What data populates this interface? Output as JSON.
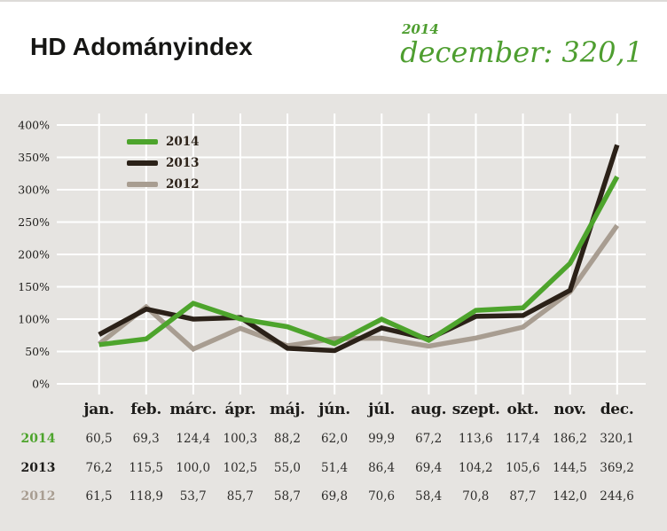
{
  "header": {
    "title": "HD Adományindex",
    "highlight_year": "2014",
    "highlight_text": "december: 320,1"
  },
  "chart_data": {
    "type": "line",
    "title": "HD Adományindex",
    "categories": [
      "jan.",
      "feb.",
      "márc.",
      "ápr.",
      "máj.",
      "jún.",
      "júl.",
      "aug.",
      "szept.",
      "okt.",
      "nov.",
      "dec."
    ],
    "series": [
      {
        "name": "2014",
        "color": "#4da42c",
        "values": [
          60.5,
          69.3,
          124.4,
          100.3,
          88.2,
          62.0,
          99.9,
          67.2,
          113.6,
          117.4,
          186.2,
          320.1
        ]
      },
      {
        "name": "2013",
        "color": "#2b2118",
        "values": [
          76.2,
          115.5,
          100.0,
          102.5,
          55.0,
          51.4,
          86.4,
          69.4,
          104.2,
          105.6,
          144.5,
          369.2
        ]
      },
      {
        "name": "2012",
        "color": "#a89d91",
        "values": [
          61.5,
          118.9,
          53.7,
          85.7,
          58.7,
          69.8,
          70.6,
          58.4,
          70.8,
          87.7,
          142.0,
          244.6
        ]
      }
    ],
    "yticks": [
      "0%",
      "50%",
      "100%",
      "150%",
      "200%",
      "250%",
      "300%",
      "350%",
      "400%"
    ],
    "ylim": [
      0,
      400
    ],
    "grid": true,
    "legend_position": "top-left"
  },
  "table": {
    "rows": [
      {
        "label": "2014",
        "color": "#4da42c",
        "values": [
          "60,5",
          "69,3",
          "124,4",
          "100,3",
          "88,2",
          "62,0",
          "99,9",
          "67,2",
          "113,6",
          "117,4",
          "186,2",
          "320,1"
        ]
      },
      {
        "label": "2013",
        "color": "#1d1c1a",
        "values": [
          "76,2",
          "115,5",
          "100,0",
          "102,5",
          "55,0",
          "51,4",
          "86,4",
          "69,4",
          "104,2",
          "105,6",
          "144,5",
          "369,2"
        ]
      },
      {
        "label": "2012",
        "color": "#a89d91",
        "values": [
          "61,5",
          "118,9",
          "53,7",
          "85,7",
          "58,7",
          "69,8",
          "70,6",
          "58,4",
          "70,8",
          "87,7",
          "142,0",
          "244,6"
        ]
      }
    ]
  },
  "colors": {
    "background": "#e6e4e1",
    "header_background": "#ffffff",
    "grid": "#ffffff",
    "text": "#1d1c1a",
    "accent_green": "#4da42c"
  }
}
